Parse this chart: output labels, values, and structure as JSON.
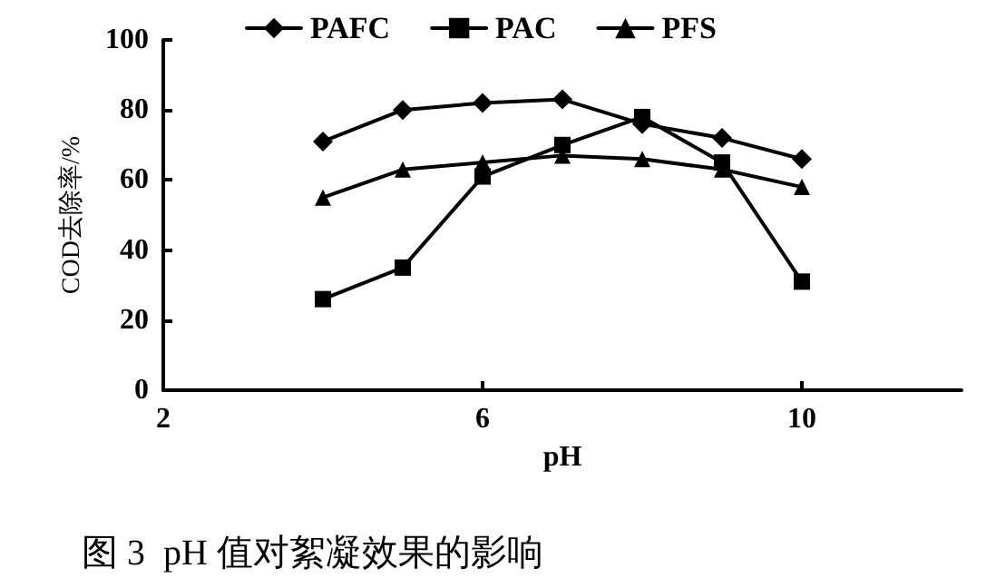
{
  "chart_data": {
    "type": "line",
    "title": "图 3  pH 值对絮凝效果的影响",
    "xlabel": "pH",
    "ylabel": "COD去除率/%",
    "x": [
      4,
      5,
      6,
      7,
      8,
      9,
      10
    ],
    "series": [
      {
        "name": "PAFC",
        "color": "#000000",
        "marker": "diamond",
        "values": [
          71,
          80,
          82,
          83,
          76,
          72,
          66
        ]
      },
      {
        "name": "PAC",
        "color": "#000000",
        "marker": "square",
        "values": [
          26,
          35,
          61,
          70,
          78,
          65,
          31
        ]
      },
      {
        "name": "PFS",
        "color": "#000000",
        "marker": "triangle",
        "values": [
          55,
          63,
          65,
          67,
          66,
          63,
          58
        ]
      }
    ],
    "xlim": [
      2,
      12
    ],
    "xticks": [
      2,
      6,
      10
    ],
    "ylim": [
      0,
      100
    ],
    "yticks": [
      0,
      20,
      40,
      60,
      80,
      100
    ],
    "grid": false,
    "legend": "top",
    "line_style": "solid"
  }
}
